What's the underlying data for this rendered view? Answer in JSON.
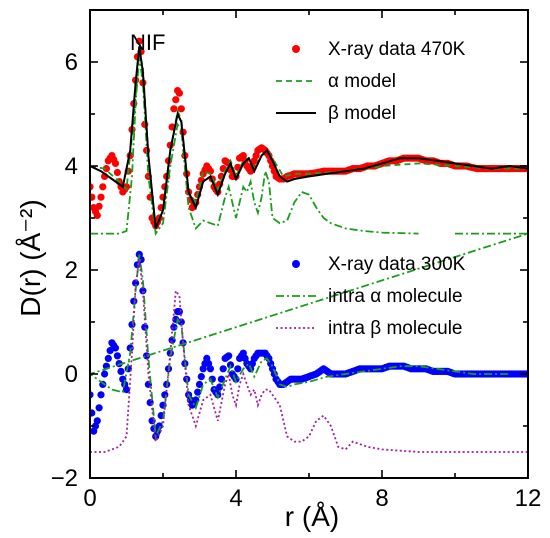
{
  "chart_data": {
    "type": "line",
    "title": "",
    "annotation": "NIF",
    "xlabel": "r (Å)",
    "ylabel": "D(r) (Å⁻²)",
    "xlim": [
      0,
      12
    ],
    "ylim": [
      -2,
      7
    ],
    "xticks": [
      0,
      4,
      8,
      12
    ],
    "xtick_labels": [
      "0",
      "4",
      "8",
      "12"
    ],
    "yticks": [
      -2,
      0,
      2,
      4,
      6
    ],
    "ytick_labels": [
      "−2",
      "0",
      "2",
      "4",
      "6"
    ],
    "grid": false,
    "legends": [
      {
        "placement": "top-right",
        "entries": [
          {
            "label": "X-ray data 470K",
            "series": "xray470"
          },
          {
            "label": "α model",
            "series": "alpha_model"
          },
          {
            "label": "β model",
            "series": "beta_model"
          }
        ]
      },
      {
        "placement": "middle-right",
        "entries": [
          {
            "label": "X-ray data 300K",
            "series": "xray300"
          },
          {
            "label": "intra α molecule",
            "series": "intra_alpha"
          },
          {
            "label": "intra β molecule",
            "series": "intra_beta"
          }
        ]
      }
    ],
    "series": [
      {
        "name": "X-ray data 470K",
        "key": "xray470",
        "style": "markers",
        "color": "#ff0000",
        "x": [
          0,
          0.1,
          0.2,
          0.3,
          0.4,
          0.5,
          0.6,
          0.7,
          0.8,
          0.9,
          1.0,
          1.1,
          1.2,
          1.3,
          1.35,
          1.4,
          1.45,
          1.5,
          1.6,
          1.7,
          1.8,
          1.9,
          2.0,
          2.1,
          2.2,
          2.3,
          2.4,
          2.45,
          2.5,
          2.6,
          2.7,
          2.8,
          2.9,
          3.0,
          3.1,
          3.2,
          3.3,
          3.4,
          3.5,
          3.6,
          3.7,
          3.8,
          3.9,
          4.0,
          4.1,
          4.2,
          4.3,
          4.4,
          4.5,
          4.6,
          4.7,
          4.8,
          4.9,
          5.0,
          5.1,
          5.2,
          5.3,
          5.4,
          5.5,
          5.6,
          5.7,
          5.8,
          5.9,
          6.0,
          6.2,
          6.4,
          6.6,
          6.8,
          7.0,
          7.2,
          7.4,
          7.6,
          7.8,
          8.0,
          8.2,
          8.4,
          8.6,
          8.8,
          9.0,
          9.2,
          9.4,
          9.6,
          9.8,
          10.0,
          10.3,
          10.6,
          11.0,
          11.4,
          11.8,
          12.0
        ],
        "y": [
          3.6,
          3.2,
          3.05,
          3.4,
          3.8,
          4.1,
          4.2,
          4.05,
          3.7,
          3.5,
          3.6,
          4.2,
          5.2,
          6.1,
          6.4,
          6.2,
          5.6,
          4.8,
          3.8,
          3.0,
          2.85,
          3.0,
          3.4,
          3.8,
          4.4,
          5.1,
          5.45,
          5.4,
          5.1,
          4.2,
          3.5,
          3.2,
          3.3,
          3.6,
          3.85,
          4.0,
          3.9,
          3.6,
          3.5,
          3.8,
          4.1,
          4.05,
          3.8,
          3.8,
          4.15,
          4.2,
          4.0,
          3.9,
          4.1,
          4.3,
          4.35,
          4.3,
          4.2,
          4.0,
          3.8,
          3.75,
          3.75,
          3.8,
          3.82,
          3.85,
          3.85,
          3.85,
          3.85,
          3.85,
          3.87,
          3.9,
          3.9,
          3.9,
          3.9,
          3.95,
          3.95,
          4.0,
          4.0,
          4.05,
          4.1,
          4.1,
          4.15,
          4.15,
          4.15,
          4.1,
          4.1,
          4.05,
          4.05,
          4.0,
          4.0,
          3.95,
          3.95,
          3.95,
          3.95,
          3.95
        ]
      },
      {
        "name": "α model",
        "key": "alpha_model",
        "style": "dashed",
        "color": "#1a9e1a",
        "x": [
          0,
          0.4,
          0.8,
          1.0,
          1.2,
          1.35,
          1.45,
          1.6,
          1.8,
          2.0,
          2.2,
          2.4,
          2.5,
          2.7,
          2.9,
          3.1,
          3.3,
          3.5,
          3.7,
          3.85,
          4.0,
          4.2,
          4.35,
          4.5,
          4.7,
          4.85,
          5.0,
          5.3,
          5.6,
          6.0,
          7.0,
          8.0,
          9.0,
          10.0,
          11.0,
          12.0
        ],
        "y": [
          4.0,
          3.95,
          3.7,
          3.55,
          4.9,
          6.2,
          5.9,
          4.2,
          2.8,
          3.2,
          4.3,
          5.05,
          4.9,
          3.5,
          3.3,
          3.9,
          3.85,
          3.55,
          3.9,
          4.1,
          3.8,
          4.1,
          4.15,
          3.95,
          4.2,
          4.3,
          4.15,
          3.8,
          3.85,
          3.85,
          3.9,
          4.0,
          4.05,
          4.0,
          3.95,
          3.95
        ]
      },
      {
        "name": "β model",
        "key": "beta_model",
        "style": "solid",
        "color": "#000000",
        "x": [
          0,
          0.3,
          0.6,
          0.9,
          1.1,
          1.25,
          1.35,
          1.45,
          1.6,
          1.8,
          2.0,
          2.2,
          2.4,
          2.5,
          2.7,
          2.9,
          3.1,
          3.3,
          3.5,
          3.7,
          3.85,
          4.0,
          4.2,
          4.35,
          4.5,
          4.7,
          4.85,
          5.0,
          5.2,
          5.4,
          5.6,
          6.0,
          6.5,
          7.0,
          7.5,
          8.0,
          8.5,
          9.0,
          9.5,
          10.0,
          10.5,
          11.0,
          11.5,
          12.0
        ],
        "y": [
          4.0,
          3.9,
          3.75,
          3.6,
          4.3,
          5.6,
          6.3,
          5.8,
          4.2,
          2.8,
          3.15,
          4.3,
          5.0,
          4.85,
          3.5,
          3.2,
          3.7,
          3.8,
          3.45,
          3.85,
          4.05,
          3.75,
          4.05,
          4.15,
          3.9,
          4.2,
          4.3,
          4.1,
          3.8,
          3.7,
          3.75,
          3.8,
          3.85,
          3.9,
          3.95,
          4.05,
          4.15,
          4.15,
          4.1,
          4.05,
          4.0,
          3.95,
          4.0,
          3.95
        ]
      },
      {
        "name": "X-ray data 300K",
        "key": "xray300",
        "style": "markers",
        "color": "#0000ff",
        "x": [
          0,
          0.1,
          0.2,
          0.3,
          0.4,
          0.5,
          0.6,
          0.7,
          0.8,
          0.9,
          1.0,
          1.1,
          1.2,
          1.3,
          1.35,
          1.4,
          1.45,
          1.5,
          1.6,
          1.7,
          1.8,
          1.9,
          2.0,
          2.1,
          2.2,
          2.3,
          2.4,
          2.45,
          2.5,
          2.6,
          2.7,
          2.8,
          2.9,
          3.0,
          3.1,
          3.2,
          3.3,
          3.4,
          3.5,
          3.6,
          3.7,
          3.8,
          3.9,
          4.0,
          4.1,
          4.2,
          4.3,
          4.4,
          4.5,
          4.6,
          4.7,
          4.8,
          4.9,
          5.0,
          5.1,
          5.2,
          5.3,
          5.4,
          5.5,
          5.6,
          5.8,
          6.0,
          6.2,
          6.4,
          6.6,
          6.8,
          7.0,
          7.2,
          7.4,
          7.6,
          7.8,
          8.0,
          8.2,
          8.4,
          8.6,
          8.8,
          9.0,
          9.2,
          9.4,
          9.6,
          9.8,
          10.0,
          10.3,
          10.6,
          11.0,
          11.4,
          11.8,
          12.0
        ],
        "y": [
          -0.4,
          -1.1,
          -0.9,
          -0.4,
          0.0,
          0.3,
          0.6,
          0.5,
          0.2,
          -0.1,
          -0.3,
          0.5,
          1.4,
          2.1,
          2.3,
          2.2,
          1.6,
          0.9,
          -0.2,
          -0.9,
          -1.2,
          -1.0,
          -0.6,
          -0.2,
          0.4,
          0.9,
          1.2,
          1.2,
          1.0,
          0.2,
          -0.4,
          -0.6,
          -0.5,
          -0.2,
          0.1,
          0.3,
          0.1,
          -0.3,
          -0.4,
          -0.1,
          0.3,
          0.35,
          0.0,
          -0.1,
          0.3,
          0.4,
          0.2,
          0.1,
          0.3,
          0.4,
          0.4,
          0.4,
          0.3,
          0.1,
          -0.1,
          -0.2,
          -0.2,
          -0.15,
          -0.1,
          -0.1,
          -0.1,
          -0.05,
          0.0,
          0.1,
          0.0,
          0.0,
          0.0,
          0.05,
          0.1,
          0.1,
          0.1,
          0.1,
          0.15,
          0.15,
          0.15,
          0.1,
          0.1,
          0.1,
          0.05,
          0.05,
          0.05,
          0.0,
          0.0,
          0.0,
          0.0,
          0.0,
          0.0,
          0.0
        ]
      },
      {
        "name": "intra α molecule",
        "key": "intra_alpha",
        "style": "dash-dot",
        "color": "#1a9e1a",
        "x": [
          0,
          0.4,
          0.8,
          1.0,
          1.15,
          1.25,
          1.35,
          1.45,
          1.6,
          1.8,
          2.0,
          2.2,
          2.4,
          2.5,
          2.7,
          2.9,
          3.1,
          3.3,
          3.5,
          3.7,
          3.8,
          3.9,
          4.0,
          4.1,
          4.2,
          4.3,
          4.4,
          4.5,
          4.6,
          4.7,
          4.8,
          4.9,
          5.0,
          5.2,
          5.4,
          5.6,
          5.8,
          6.0,
          6.2,
          6.4,
          6.6,
          6.8,
          7.0,
          7.5,
          8.0,
          9.0,
          10.0,
          11.0,
          12.0,
          0,
          0.3,
          0.6,
          0.9,
          1.1,
          1.25,
          1.35,
          1.45,
          1.6,
          1.8,
          2.0,
          2.2,
          2.4,
          2.5,
          2.7,
          2.9,
          3.1,
          3.3,
          3.5,
          3.7,
          3.85,
          4.0,
          4.2,
          4.35,
          4.5,
          4.7,
          4.85,
          5.0,
          5.2,
          5.4,
          5.6,
          6.0,
          6.5,
          7.0,
          7.5,
          8.0,
          8.5,
          9.0,
          9.5,
          10.0,
          10.5,
          11.0,
          11.5,
          12.0
        ],
        "y": [
          2.7,
          2.7,
          2.7,
          2.75,
          3.8,
          5.2,
          6.1,
          5.6,
          3.8,
          2.7,
          2.9,
          4.0,
          4.8,
          4.7,
          3.2,
          2.8,
          2.95,
          2.9,
          2.85,
          3.4,
          3.6,
          3.3,
          3.0,
          3.3,
          3.6,
          3.5,
          3.7,
          3.3,
          3.1,
          3.4,
          3.9,
          3.7,
          3.0,
          2.9,
          2.95,
          3.3,
          3.5,
          3.45,
          3.2,
          3.0,
          2.9,
          2.85,
          2.8,
          2.75,
          2.72,
          2.7,
          2.7,
          2.7,
          2.7,
          0.0,
          -0.15,
          -0.3,
          -0.35,
          0.4,
          1.6,
          2.3,
          1.8,
          0.3,
          -1.2,
          -0.9,
          0.3,
          1.05,
          0.95,
          -0.4,
          -0.65,
          -0.2,
          -0.1,
          -0.45,
          -0.1,
          0.15,
          -0.15,
          0.1,
          0.2,
          -0.05,
          0.25,
          0.3,
          0.15,
          -0.2,
          -0.25,
          -0.2,
          -0.15,
          -0.05,
          0.0,
          0.05,
          0.1,
          0.15,
          0.15,
          0.1,
          0.05,
          0.0,
          0.0,
          0.0,
          0.0
        ],
        "segments": 2
      },
      {
        "name": "intra β molecule",
        "key": "intra_beta",
        "style": "dotted",
        "color": "#a020a0",
        "x": [
          0,
          0.4,
          0.8,
          1.0,
          1.15,
          1.25,
          1.35,
          1.45,
          1.6,
          1.8,
          2.0,
          2.2,
          2.35,
          2.45,
          2.55,
          2.7,
          2.9,
          3.1,
          3.3,
          3.5,
          3.7,
          3.8,
          3.9,
          4.0,
          4.1,
          4.2,
          4.3,
          4.4,
          4.5,
          4.6,
          4.7,
          4.8,
          4.9,
          5.0,
          5.2,
          5.4,
          5.6,
          5.8,
          6.0,
          6.2,
          6.4,
          6.6,
          6.8,
          7.0,
          7.2,
          7.4,
          7.6,
          8.0,
          9.0,
          10.0,
          11.0,
          12.0
        ],
        "y": [
          -1.5,
          -1.5,
          -1.4,
          -1.2,
          0.4,
          1.7,
          2.2,
          1.6,
          0.0,
          -1.3,
          -1.0,
          0.4,
          1.6,
          1.5,
          0.6,
          -0.6,
          -1.0,
          -0.5,
          -0.4,
          -0.9,
          -0.2,
          0.0,
          -0.4,
          -0.6,
          -0.2,
          0.0,
          -0.2,
          -0.4,
          -0.3,
          -0.6,
          -0.4,
          -0.3,
          -0.3,
          -0.4,
          -0.6,
          -1.2,
          -1.3,
          -1.3,
          -1.2,
          -0.9,
          -0.8,
          -1.0,
          -1.4,
          -1.45,
          -1.3,
          -1.35,
          -1.4,
          -1.45,
          -1.5,
          -1.5,
          -1.5,
          -1.5
        ]
      }
    ]
  }
}
